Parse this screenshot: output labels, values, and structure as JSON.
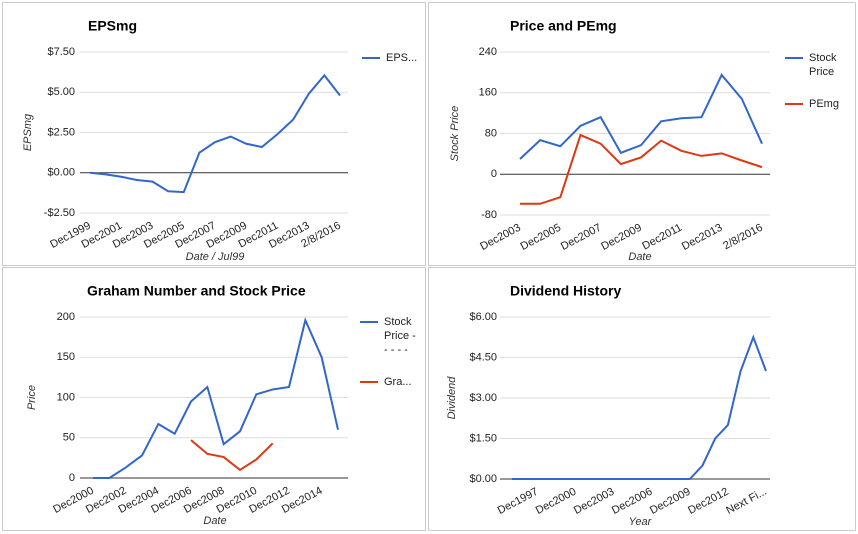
{
  "chart_data": [
    {
      "type": "line",
      "title": "EPSmg",
      "x_label": "Date / Jul99",
      "y_label": "EPSmg",
      "categories": [
        "Dec1999",
        null,
        "Dec2001",
        null,
        "Dec2003",
        null,
        "Dec2005",
        null,
        "Dec2007",
        null,
        "Dec2009",
        null,
        "Dec2011",
        null,
        "Dec2013",
        null,
        "2/8/2016"
      ],
      "series": [
        {
          "name": "EPS...",
          "color": "#3366cc",
          "values": [
            0,
            -0.1,
            -0.25,
            -0.45,
            -0.55,
            -1.15,
            -1.2,
            1.25,
            1.9,
            2.25,
            1.8,
            1.6,
            2.4,
            3.3,
            4.9,
            6.05,
            4.8
          ]
        }
      ],
      "ylim": [
        -2.5,
        7.5
      ],
      "yticks": [
        {
          "value": 7.5,
          "label": "$7.50"
        },
        {
          "value": 5,
          "label": "$5.00"
        },
        {
          "value": 2.5,
          "label": "$2.50"
        },
        {
          "value": 0,
          "label": "$0.00"
        },
        {
          "value": -2.5,
          "label": "-$2.50"
        }
      ],
      "grid": true,
      "legend": "right"
    },
    {
      "type": "line",
      "title": "Price and PEmg",
      "x_label": "Date",
      "y_label": "Stock Price",
      "categories": [
        "Dec2003",
        null,
        "Dec2005",
        null,
        "Dec2007",
        null,
        "Dec2009",
        null,
        "Dec2011",
        null,
        "Dec2013",
        null,
        "2/8/2016"
      ],
      "series": [
        {
          "name": "Stock Price",
          "color": "#3366cc",
          "values": [
            30,
            67,
            55,
            95,
            112,
            42,
            57,
            104,
            110,
            112,
            195,
            148,
            60
          ]
        },
        {
          "name": "PEmg",
          "color": "#dc3912",
          "values": [
            -58,
            -58,
            -45,
            77,
            60,
            20,
            33,
            66,
            46,
            36,
            41,
            27,
            14
          ]
        }
      ],
      "ylim": [
        -80,
        240
      ],
      "yticks": [
        240,
        160,
        80,
        0,
        -80
      ],
      "grid": true,
      "legend": "right"
    },
    {
      "type": "line",
      "title": "Graham Number and Stock Price",
      "x_label": "Date",
      "y_label": "Price",
      "categories": [
        "Dec2000",
        null,
        "Dec2002",
        null,
        "Dec2004",
        null,
        "Dec2006",
        null,
        "Dec2008",
        null,
        "Dec2010",
        null,
        "Dec2012",
        null,
        "Dec2014",
        null
      ],
      "series": [
        {
          "name": "Stock Price - - - - -",
          "color": "#3366cc",
          "values": [
            0,
            0,
            13,
            28,
            67,
            55,
            95,
            113,
            42,
            58,
            104,
            110,
            113,
            196,
            150,
            60
          ]
        },
        {
          "name": "Gra...",
          "color": "#dc3912",
          "values": [
            null,
            null,
            null,
            null,
            null,
            null,
            47,
            30,
            26,
            10,
            23,
            43,
            null,
            null,
            null,
            null
          ]
        }
      ],
      "ylim": [
        0,
        200
      ],
      "yticks": [
        200,
        150,
        100,
        50,
        0
      ],
      "grid": true,
      "legend": "right"
    },
    {
      "type": "line",
      "title": "Dividend History",
      "x_label": "Year",
      "y_label": "Dividend",
      "categories": [
        null,
        null,
        "Dec1997",
        null,
        null,
        "Dec2000",
        null,
        null,
        "Dec2003",
        null,
        null,
        "Dec2006",
        null,
        null,
        "Dec2009",
        null,
        null,
        "Dec2012",
        null,
        null,
        "Next Fi..."
      ],
      "series": [
        {
          "color": "#3366cc",
          "values": [
            0,
            0,
            0,
            0,
            0,
            0,
            0,
            0,
            0,
            0,
            0,
            0,
            0,
            0,
            0,
            0.5,
            1.5,
            2.0,
            4.0,
            5.25,
            4.0
          ]
        }
      ],
      "ylim": [
        0,
        6
      ],
      "yticks": [
        {
          "value": 6,
          "label": "$6.00"
        },
        {
          "value": 4.5,
          "label": "$4.50"
        },
        {
          "value": 3,
          "label": "$3.00"
        },
        {
          "value": 1.5,
          "label": "$1.50"
        },
        {
          "value": 0,
          "label": "$0.00"
        }
      ],
      "grid": true
    }
  ]
}
